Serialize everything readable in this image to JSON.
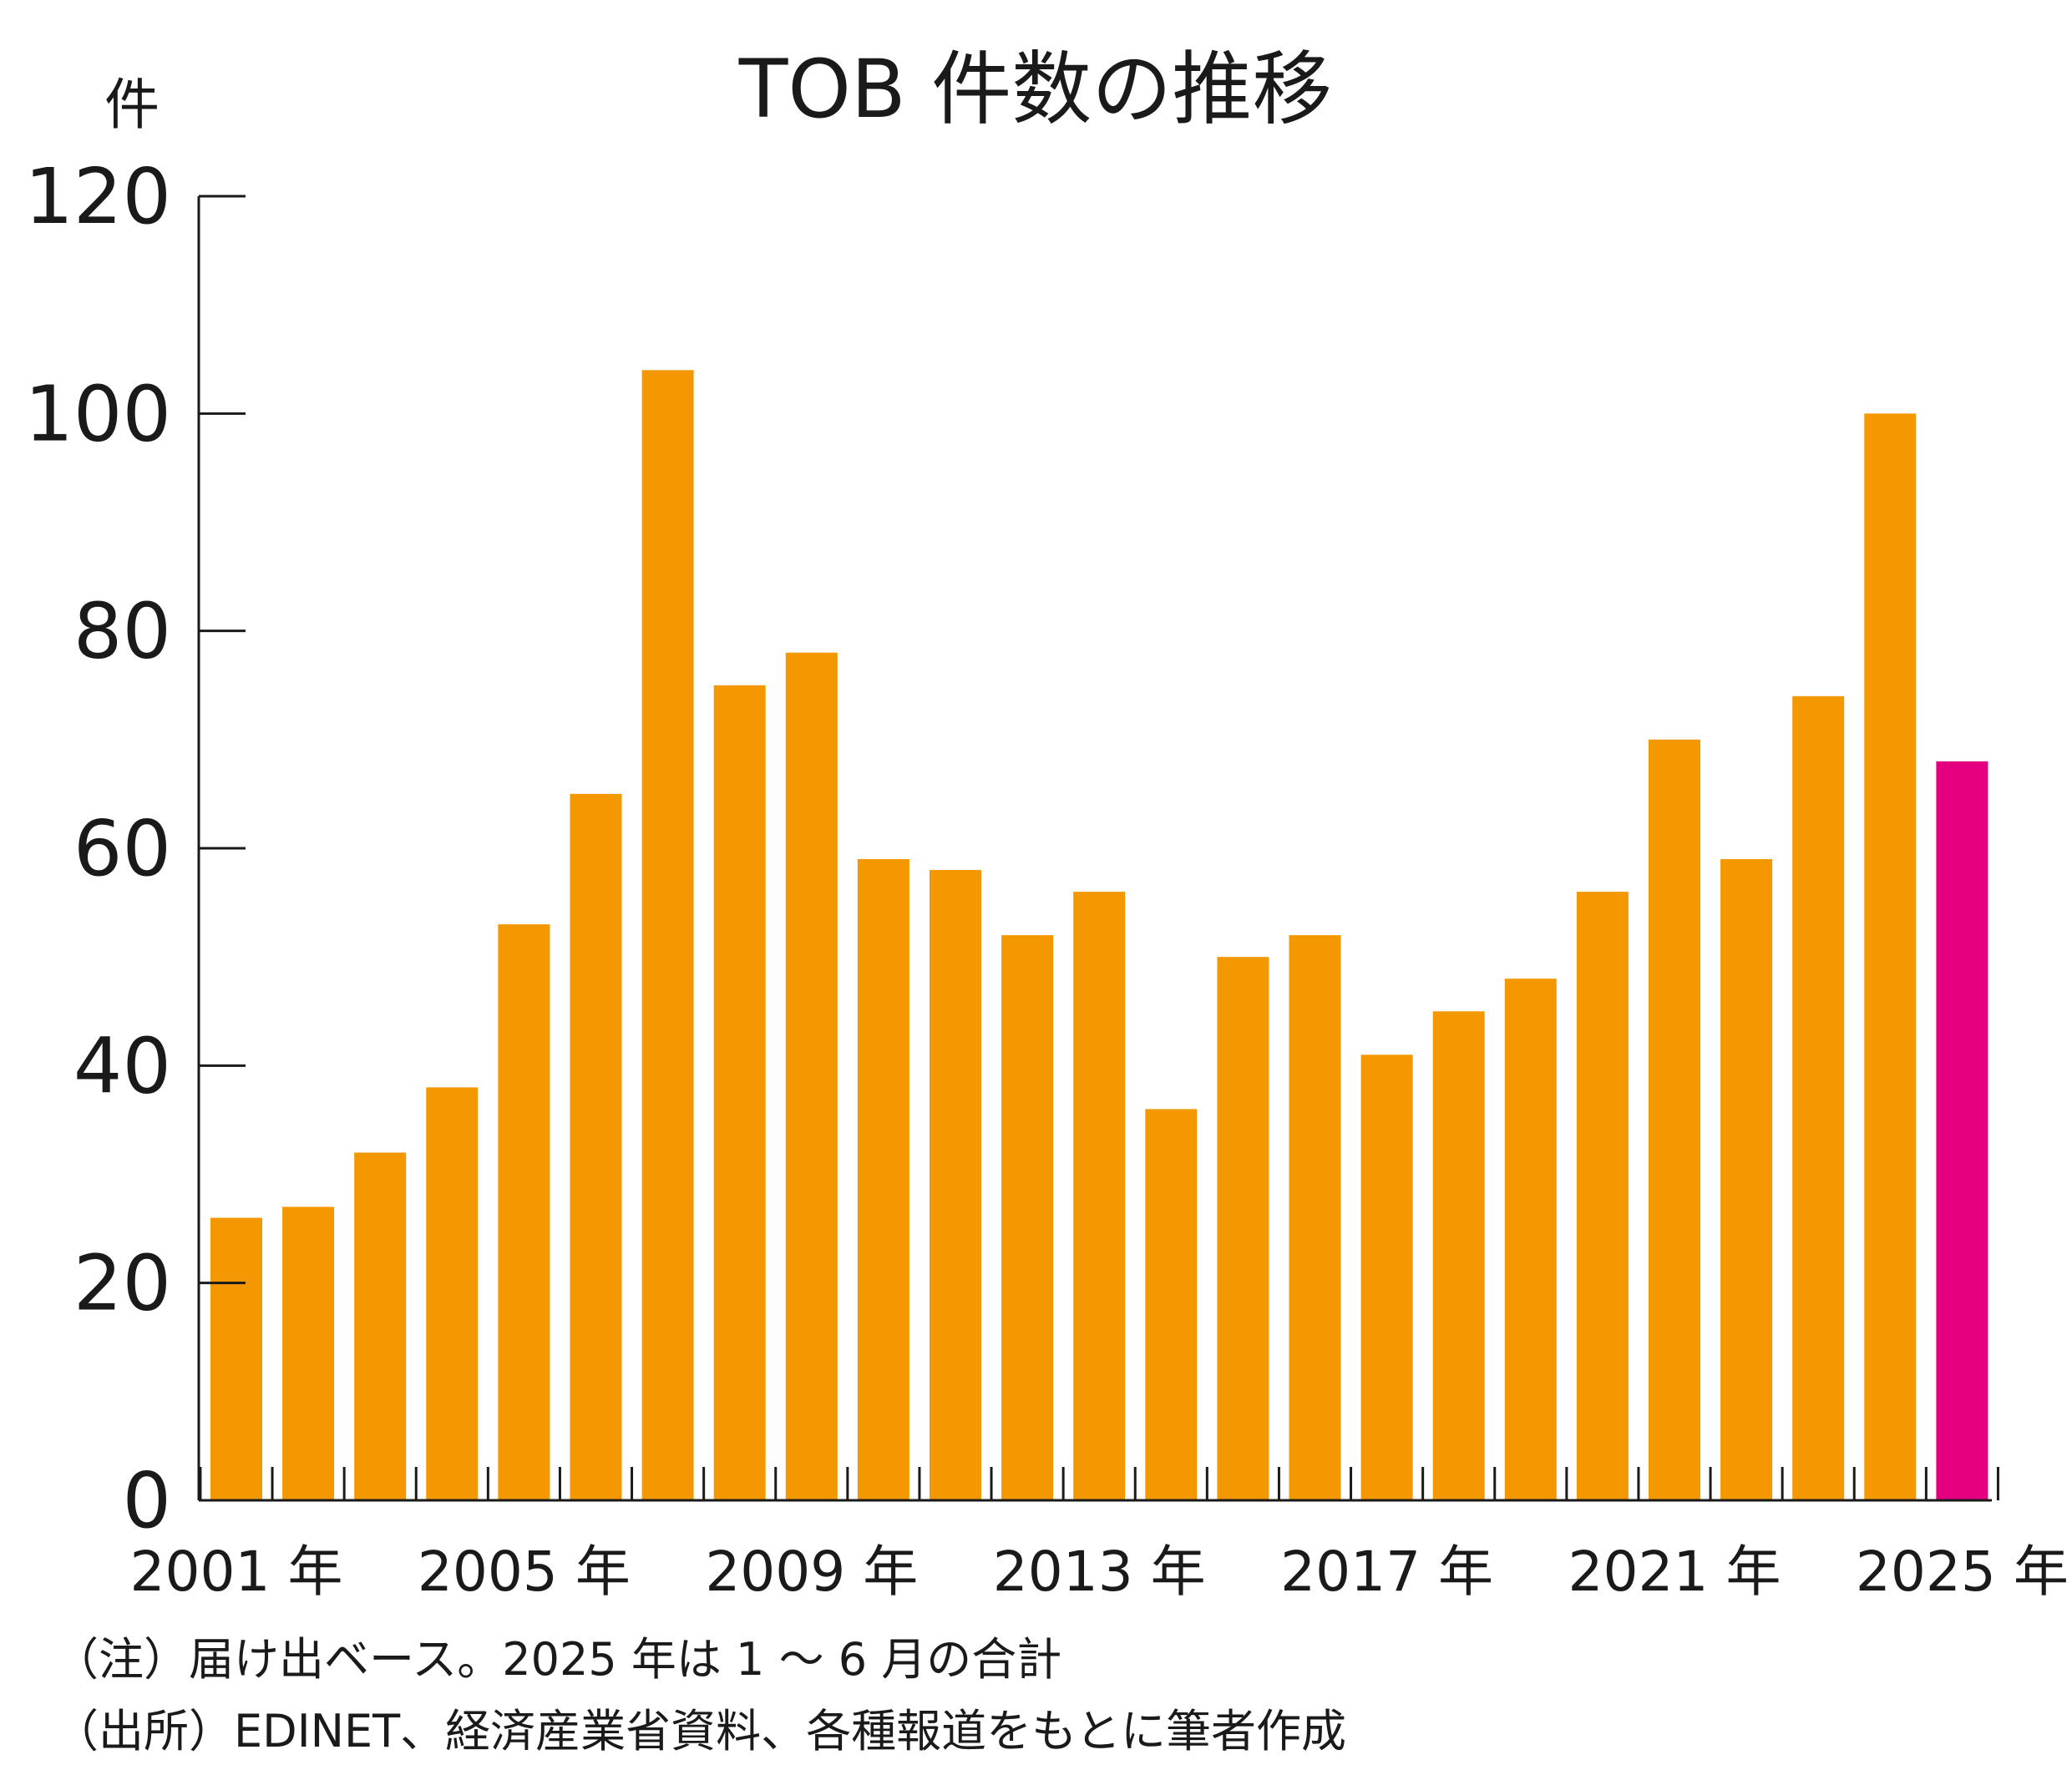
{
  "chart_data": {
    "type": "bar",
    "title": "TOB 件数の推移",
    "ylabel": "件",
    "xlabel": "",
    "ylim": [
      0,
      120
    ],
    "yticks": [
      0,
      20,
      40,
      60,
      80,
      100,
      120
    ],
    "categories": [
      "2001",
      "2002",
      "2003",
      "2004",
      "2005",
      "2006",
      "2007",
      "2008",
      "2009",
      "2010",
      "2011",
      "2012",
      "2013",
      "2014",
      "2015",
      "2016",
      "2017",
      "2018",
      "2019",
      "2020",
      "2021",
      "2022",
      "2023",
      "2024",
      "2025"
    ],
    "values": [
      26,
      27,
      32,
      38,
      53,
      65,
      104,
      75,
      78,
      59,
      58,
      52,
      56,
      36,
      50,
      52,
      41,
      45,
      48,
      56,
      70,
      59,
      74,
      100,
      68
    ],
    "x_tick_labels": [
      {
        "index": 0,
        "label": "2001 年"
      },
      {
        "index": 4,
        "label": "2005 年"
      },
      {
        "index": 8,
        "label": "2009 年"
      },
      {
        "index": 12,
        "label": "2013 年"
      },
      {
        "index": 16,
        "label": "2017 年"
      },
      {
        "index": 20,
        "label": "2021 年"
      },
      {
        "index": 24,
        "label": "2025 年"
      }
    ],
    "colors": {
      "default": "#F39800",
      "highlight": "#E4007F",
      "axis": "#1a1a1a"
    },
    "highlight_index": 24,
    "grid": false,
    "legend": "none"
  },
  "notes": [
    "（注）届け出ベース。2025 年は 1 ～ 6 月の合計",
    "（出所）EDINET、経済産業省資料、各種報道をもとに筆者作成"
  ]
}
